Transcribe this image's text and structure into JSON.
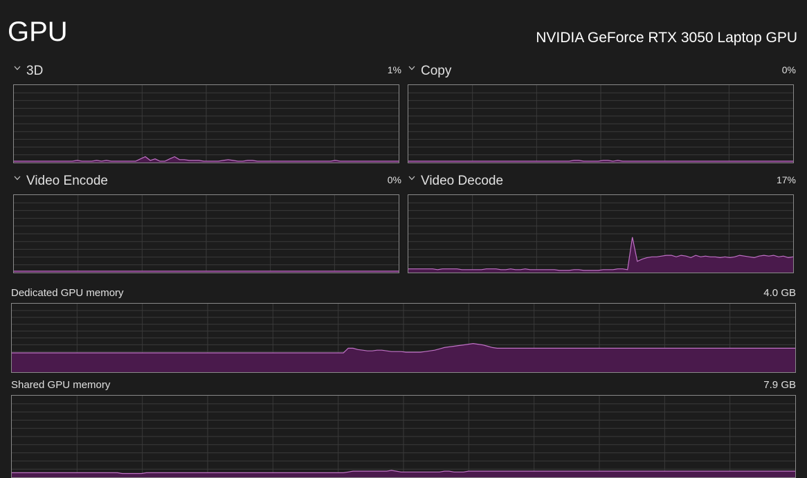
{
  "header": {
    "title": "GPU",
    "gpu_name": "NVIDIA GeForce RTX 3050 Laptop GPU"
  },
  "colors": {
    "line": "#c071c6",
    "fill": "#4a1a4c",
    "grid": "#3a3a3a",
    "border": "#8a8a8a",
    "background": "#1c1c1c"
  },
  "engines": [
    {
      "label": "3D",
      "value": "1%",
      "icon": "chevron-down-icon",
      "series": [
        0,
        0,
        0,
        0,
        0,
        0,
        0,
        0,
        0,
        0,
        0,
        0,
        0,
        1,
        0,
        0,
        0,
        1,
        0,
        1,
        0,
        0,
        0,
        0,
        0,
        0,
        3,
        6,
        1,
        3,
        0,
        0,
        3,
        6,
        2,
        2,
        1,
        1,
        1,
        0,
        0,
        0,
        0,
        1,
        2,
        1,
        0,
        0,
        1,
        1,
        0,
        0,
        0,
        0,
        0,
        0,
        0,
        0,
        0,
        0,
        0,
        0,
        0,
        0,
        0,
        0,
        1,
        0,
        0,
        0,
        0,
        0,
        0,
        0,
        0,
        0,
        0,
        0,
        0,
        0
      ]
    },
    {
      "label": "Copy",
      "value": "0%",
      "icon": "chevron-down-icon",
      "series": [
        0,
        0,
        0,
        0,
        0,
        0,
        0,
        0,
        0,
        0,
        0,
        0,
        0,
        0,
        0,
        0,
        0,
        0,
        0,
        0,
        0,
        0,
        0,
        0,
        0,
        0,
        0,
        0,
        0,
        0,
        0,
        0,
        0,
        0,
        1,
        1,
        0,
        0,
        0,
        0,
        1,
        1,
        0,
        1,
        0,
        0,
        0,
        0,
        0,
        0,
        0,
        0,
        0,
        0,
        0,
        0,
        0,
        0,
        0,
        0,
        0,
        0,
        0,
        0,
        0,
        0,
        0,
        0,
        0,
        0,
        0,
        0,
        0,
        0,
        0,
        0,
        0,
        0,
        0,
        0
      ]
    },
    {
      "label": "Video Encode",
      "value": "0%",
      "icon": "chevron-down-icon",
      "series": [
        0,
        0,
        0,
        0,
        0,
        0,
        0,
        0,
        0,
        0,
        0,
        0,
        0,
        0,
        0,
        0,
        0,
        0,
        0,
        0,
        0,
        0,
        0,
        0,
        0,
        0,
        0,
        0,
        0,
        0,
        0,
        0,
        0,
        0,
        0,
        0,
        0,
        0,
        0,
        0,
        0,
        0,
        0,
        0,
        0,
        0,
        0,
        0,
        0,
        0,
        0,
        0,
        0,
        0,
        0,
        0,
        0,
        0,
        0,
        0,
        0,
        0,
        0,
        0,
        0,
        0,
        0,
        0,
        0,
        0,
        0,
        0,
        0,
        0,
        0,
        0,
        0,
        0,
        0,
        0
      ]
    },
    {
      "label": "Video Decode",
      "value": "17%",
      "icon": "chevron-down-icon",
      "series": [
        3,
        3,
        3,
        3,
        3,
        3,
        2,
        3,
        3,
        3,
        3,
        2,
        2,
        2,
        2,
        2,
        3,
        3,
        3,
        2,
        2,
        3,
        2,
        2,
        3,
        2,
        2,
        2,
        2,
        2,
        2,
        1,
        1,
        1,
        2,
        2,
        1,
        1,
        1,
        1,
        2,
        2,
        2,
        3,
        3,
        2,
        45,
        13,
        16,
        18,
        19,
        19,
        20,
        21,
        21,
        19,
        21,
        20,
        18,
        21,
        19,
        20,
        19,
        19,
        18,
        19,
        18,
        19,
        21,
        20,
        19,
        18,
        20,
        21,
        20,
        21,
        19,
        20,
        18,
        19
      ]
    }
  ],
  "memory": [
    {
      "label": "Dedicated GPU memory",
      "value": "4.0 GB",
      "series": [
        27,
        27,
        27,
        27,
        27,
        27,
        27,
        27,
        27,
        27,
        27,
        27,
        27,
        27,
        27,
        27,
        27,
        27,
        27,
        27,
        27,
        27,
        27,
        27,
        27,
        27,
        27,
        27,
        27,
        27,
        27,
        27,
        27,
        27,
        27,
        27,
        27,
        27,
        27,
        27,
        27,
        27,
        27,
        27,
        27,
        27,
        27,
        27,
        27,
        27,
        27,
        27,
        27,
        27,
        27,
        27,
        27,
        27,
        27,
        27,
        27,
        27,
        27,
        27,
        27,
        27,
        27,
        27,
        27,
        27,
        34,
        34,
        32,
        31,
        30,
        30,
        31,
        31,
        30,
        29,
        29,
        29,
        28,
        28,
        28,
        28,
        29,
        30,
        31,
        33,
        35,
        36,
        37,
        38,
        39,
        40,
        41,
        40,
        39,
        37,
        35,
        34,
        34,
        34,
        34,
        34,
        34,
        34,
        34,
        34,
        34,
        34,
        34,
        34,
        34,
        34,
        34,
        34,
        34,
        34,
        34,
        34,
        34,
        34,
        34,
        34,
        34,
        34,
        34,
        34,
        34,
        34,
        34,
        34,
        34,
        34,
        34,
        34,
        34,
        34,
        34,
        34,
        34,
        34,
        34,
        34,
        34,
        34,
        34,
        34,
        34,
        34,
        34,
        34,
        34,
        34,
        34,
        34,
        34,
        34,
        34,
        34,
        34,
        34
      ]
    },
    {
      "label": "Shared GPU memory",
      "value": "7.9 GB",
      "series": [
        4,
        4,
        4,
        4,
        4,
        4,
        4,
        4,
        4,
        4,
        4,
        4,
        4,
        4,
        4,
        4,
        4,
        4,
        4,
        4,
        4,
        4,
        4,
        3,
        3,
        3,
        3,
        3,
        4,
        4,
        4,
        4,
        4,
        4,
        4,
        4,
        4,
        4,
        4,
        4,
        4,
        4,
        4,
        4,
        4,
        4,
        4,
        4,
        4,
        4,
        4,
        4,
        4,
        4,
        4,
        4,
        4,
        4,
        4,
        4,
        4,
        4,
        4,
        4,
        4,
        4,
        4,
        4,
        4,
        4,
        5,
        6,
        6,
        6,
        6,
        6,
        6,
        6,
        6,
        7,
        6,
        5,
        5,
        5,
        5,
        5,
        5,
        5,
        5,
        5,
        6,
        6,
        5,
        5,
        5,
        6,
        6,
        6,
        6,
        6,
        6,
        6,
        6,
        6,
        6,
        6,
        6,
        6,
        6,
        6,
        6,
        6,
        6,
        6,
        6,
        6,
        6,
        6,
        6,
        6,
        6,
        6,
        6,
        6,
        6,
        6,
        6,
        6,
        6,
        6,
        6,
        6,
        6,
        6,
        6,
        6,
        6,
        6,
        6,
        6,
        6,
        6,
        6,
        6,
        6,
        6,
        6,
        6,
        6,
        6,
        6,
        6,
        6,
        6,
        6,
        6,
        6,
        6,
        6,
        6,
        6,
        6,
        6,
        6
      ]
    }
  ]
}
